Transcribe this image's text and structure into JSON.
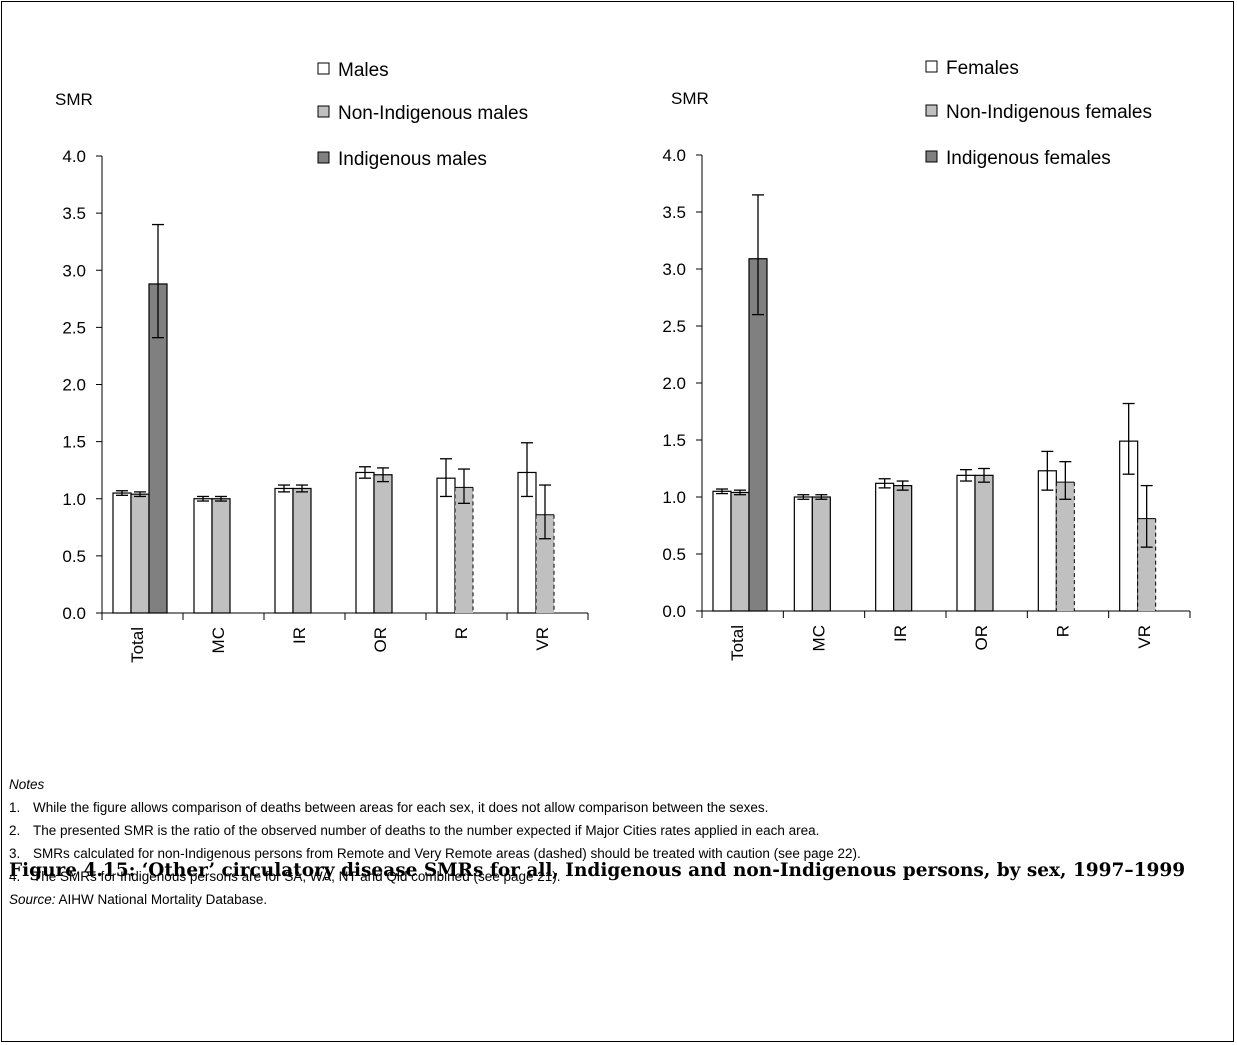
{
  "chart_data": [
    {
      "type": "bar",
      "ylabel": "SMR",
      "ylim": [
        0,
        4
      ],
      "yticks": [
        "0.0",
        "0.5",
        "1.0",
        "1.5",
        "2.0",
        "2.5",
        "3.0",
        "3.5",
        "4.0"
      ],
      "categories": [
        "Total",
        "MC",
        "IR",
        "OR",
        "R",
        "VR"
      ],
      "legend_position": "top",
      "series": [
        {
          "name": "Males",
          "color": "#ffffff",
          "values": [
            1.05,
            1.0,
            1.09,
            1.23,
            1.18,
            1.23
          ],
          "ci_low": [
            1.03,
            0.98,
            1.06,
            1.18,
            1.02,
            1.02
          ],
          "ci_high": [
            1.07,
            1.02,
            1.12,
            1.28,
            1.35,
            1.49
          ]
        },
        {
          "name": "Non-Indigenous males",
          "color": "#c0c0c0",
          "values": [
            1.04,
            1.0,
            1.09,
            1.21,
            1.1,
            0.86
          ],
          "ci_low": [
            1.02,
            0.98,
            1.06,
            1.15,
            0.96,
            0.65
          ],
          "ci_high": [
            1.06,
            1.02,
            1.12,
            1.27,
            1.26,
            1.12
          ],
          "dashed": [
            false,
            false,
            false,
            false,
            true,
            true
          ]
        },
        {
          "name": "Indigenous males",
          "color": "#808080",
          "values": [
            2.88,
            null,
            null,
            null,
            null,
            null
          ],
          "ci_low": [
            2.41,
            null,
            null,
            null,
            null,
            null
          ],
          "ci_high": [
            3.4,
            null,
            null,
            null,
            null,
            null
          ]
        }
      ]
    },
    {
      "type": "bar",
      "ylabel": "SMR",
      "ylim": [
        0,
        4
      ],
      "yticks": [
        "0.0",
        "0.5",
        "1.0",
        "1.5",
        "2.0",
        "2.5",
        "3.0",
        "3.5",
        "4.0"
      ],
      "categories": [
        "Total",
        "MC",
        "IR",
        "OR",
        "R",
        "VR"
      ],
      "legend_position": "top",
      "series": [
        {
          "name": "Females",
          "color": "#ffffff",
          "values": [
            1.05,
            1.0,
            1.12,
            1.19,
            1.23,
            1.49
          ],
          "ci_low": [
            1.03,
            0.98,
            1.08,
            1.14,
            1.06,
            1.2
          ],
          "ci_high": [
            1.07,
            1.02,
            1.16,
            1.24,
            1.4,
            1.82
          ]
        },
        {
          "name": "Non-Indigenous females",
          "color": "#c0c0c0",
          "values": [
            1.04,
            1.0,
            1.1,
            1.19,
            1.13,
            0.81
          ],
          "ci_low": [
            1.02,
            0.98,
            1.06,
            1.13,
            0.98,
            0.56
          ],
          "ci_high": [
            1.06,
            1.02,
            1.14,
            1.25,
            1.31,
            1.1
          ],
          "dashed": [
            false,
            false,
            false,
            false,
            true,
            true
          ]
        },
        {
          "name": "Indigenous females",
          "color": "#808080",
          "values": [
            3.09,
            null,
            null,
            null,
            null,
            null
          ],
          "ci_low": [
            2.6,
            null,
            null,
            null,
            null,
            null
          ],
          "ci_high": [
            3.65,
            null,
            null,
            null,
            null,
            null
          ]
        }
      ]
    }
  ],
  "notes": {
    "title": "Notes",
    "items": [
      {
        "num": "1.",
        "text": "While the figure allows comparison of deaths between areas for each sex, it does not allow comparison between the sexes."
      },
      {
        "num": "2.",
        "text": "The presented SMR is the ratio of the observed number of deaths to the number expected if Major Cities rates applied in each area."
      },
      {
        "num": "3.",
        "text": "SMRs calculated for non-Indigenous persons from Remote and Very Remote areas (dashed) should be treated with caution (see page 22)."
      },
      {
        "num": "4.",
        "text": "The SMRs for Indigenous persons are for SA, WA, NT and Qld combined (see page 21)."
      }
    ],
    "source_label": "Source:",
    "source_text": " AIHW National Mortality Database."
  },
  "caption": "Figure 4.15: ‘Other’ circulatory disease SMRs for all, Indigenous and non-Indigenous persons, by sex, 1997–1999"
}
